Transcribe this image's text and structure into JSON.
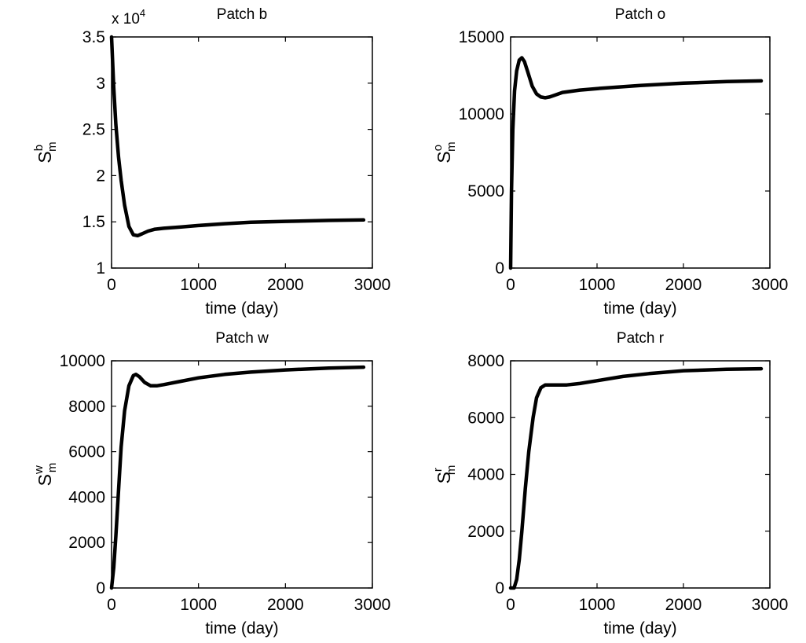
{
  "chart_data": [
    {
      "type": "line",
      "title": "Patch b",
      "xlabel": "time (day)",
      "ylabel": {
        "main": "S",
        "sup": "b",
        "sub": "m"
      },
      "xlim": [
        0,
        3000
      ],
      "ylim": [
        10000,
        35000
      ],
      "xticks": [
        0,
        1000,
        2000,
        3000
      ],
      "yticks": [
        10000,
        15000,
        20000,
        25000,
        30000,
        35000
      ],
      "ytick_labels": [
        "1",
        "1.5",
        "2",
        "2.5",
        "3",
        "3.5"
      ],
      "exponent": {
        "base": "x 10",
        "power": "4"
      },
      "grid": false,
      "series": [
        {
          "color": "#000000",
          "x": [
            0,
            25,
            50,
            80,
            110,
            150,
            200,
            250,
            300,
            350,
            420,
            500,
            600,
            800,
            1000,
            1300,
            1600,
            2000,
            2500,
            2900
          ],
          "y": [
            35000,
            29500,
            25500,
            22000,
            19500,
            16800,
            14500,
            13600,
            13500,
            13700,
            14000,
            14200,
            14300,
            14450,
            14600,
            14800,
            14950,
            15050,
            15150,
            15200
          ]
        }
      ]
    },
    {
      "type": "line",
      "title": "Patch o",
      "xlabel": "time (day)",
      "ylabel": {
        "main": "S",
        "sup": "o",
        "sub": "m"
      },
      "xlim": [
        0,
        3000
      ],
      "ylim": [
        0,
        15000
      ],
      "xticks": [
        0,
        1000,
        2000,
        3000
      ],
      "yticks": [
        0,
        5000,
        10000,
        15000
      ],
      "ytick_labels": [
        "0",
        "5000",
        "10000",
        "15000"
      ],
      "grid": false,
      "series": [
        {
          "color": "#000000",
          "x": [
            0,
            10,
            25,
            45,
            70,
            100,
            130,
            160,
            200,
            250,
            300,
            350,
            400,
            450,
            500,
            600,
            800,
            1000,
            1500,
            2000,
            2500,
            2900
          ],
          "y": [
            0,
            5000,
            9000,
            11500,
            12800,
            13500,
            13650,
            13400,
            12700,
            11800,
            11300,
            11100,
            11050,
            11100,
            11200,
            11400,
            11550,
            11650,
            11850,
            12000,
            12100,
            12150
          ]
        }
      ]
    },
    {
      "type": "line",
      "title": "Patch w",
      "xlabel": "time (day)",
      "ylabel": {
        "main": "S",
        "sup": "w",
        "sub": "m"
      },
      "xlim": [
        0,
        3000
      ],
      "ylim": [
        0,
        10000
      ],
      "xticks": [
        0,
        1000,
        2000,
        3000
      ],
      "yticks": [
        0,
        2000,
        4000,
        6000,
        8000,
        10000
      ],
      "ytick_labels": [
        "0",
        "2000",
        "4000",
        "6000",
        "8000",
        "10000"
      ],
      "grid": false,
      "series": [
        {
          "color": "#000000",
          "x": [
            0,
            25,
            50,
            80,
            110,
            150,
            200,
            250,
            280,
            320,
            380,
            450,
            520,
            600,
            800,
            1000,
            1300,
            1600,
            2000,
            2500,
            2900
          ],
          "y": [
            0,
            900,
            2300,
            4300,
            6200,
            7800,
            8900,
            9350,
            9400,
            9300,
            9050,
            8900,
            8900,
            8950,
            9100,
            9250,
            9400,
            9500,
            9600,
            9680,
            9720
          ]
        }
      ]
    },
    {
      "type": "line",
      "title": "Patch r",
      "xlabel": "time (day)",
      "ylabel": {
        "main": "S",
        "sup": "r",
        "sub": "m"
      },
      "xlim": [
        0,
        3000
      ],
      "ylim": [
        0,
        8000
      ],
      "xticks": [
        0,
        1000,
        2000,
        3000
      ],
      "yticks": [
        0,
        2000,
        4000,
        6000,
        8000
      ],
      "ytick_labels": [
        "0",
        "2000",
        "4000",
        "6000",
        "8000"
      ],
      "grid": false,
      "series": [
        {
          "color": "#000000",
          "x": [
            0,
            40,
            70,
            100,
            130,
            170,
            210,
            260,
            300,
            350,
            400,
            450,
            550,
            650,
            800,
            1000,
            1300,
            1600,
            2000,
            2500,
            2900
          ],
          "y": [
            0,
            0,
            300,
            1000,
            2000,
            3500,
            4800,
            6000,
            6700,
            7050,
            7150,
            7150,
            7150,
            7150,
            7200,
            7300,
            7450,
            7550,
            7650,
            7700,
            7720
          ]
        }
      ]
    }
  ]
}
